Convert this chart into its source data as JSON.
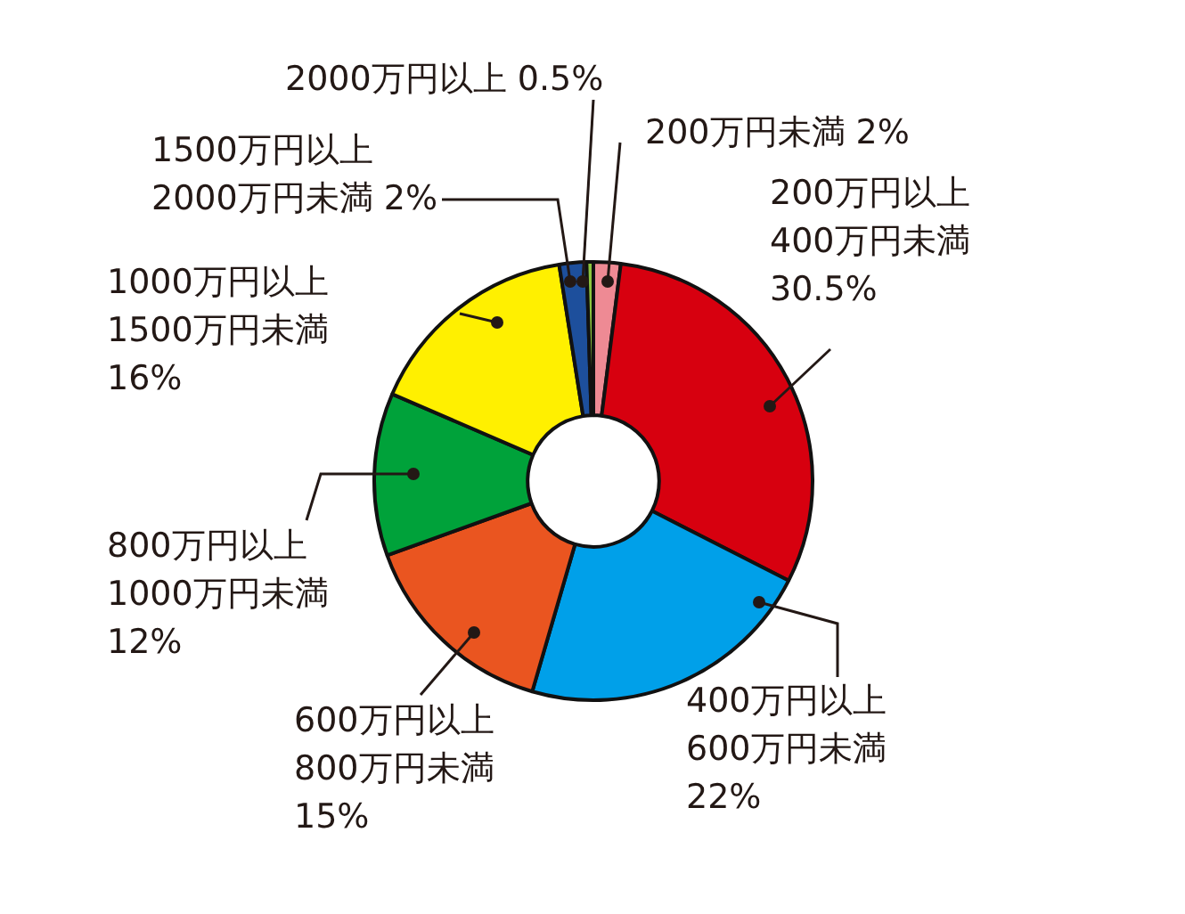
{
  "chart_data": {
    "type": "donut",
    "categories": [
      "200万円未満",
      "200万円以上 400万円未満",
      "400万円以上 600万円未満",
      "600万円以上 800万円未満",
      "800万円以上 1000万円未満",
      "1000万円以上 1500万円未満",
      "1500万円以上 2000万円未満",
      "2000万円以上"
    ],
    "values": [
      2,
      30.5,
      22,
      15,
      12,
      16,
      2,
      0.5
    ],
    "value_labels": [
      "2%",
      "30.5%",
      "22%",
      "15%",
      "12%",
      "16%",
      "2%",
      "0.5%"
    ],
    "colors": [
      "#ee8a94",
      "#d7000f",
      "#00a0e9",
      "#ea5520",
      "#00a23a",
      "#fff000",
      "#1d4f9c",
      "#8cc63f"
    ],
    "legend": false
  }
}
